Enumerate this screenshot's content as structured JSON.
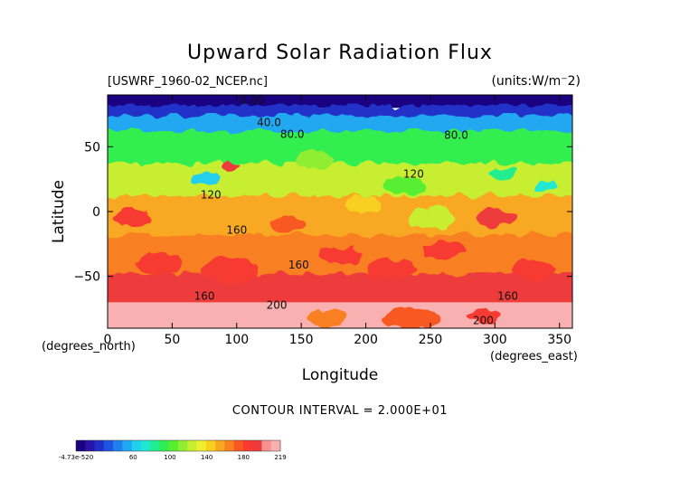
{
  "chart_data": {
    "type": "heatmap",
    "title": "Upward Solar Radiation Flux",
    "file_label": "[USWRF_1960-02_NCEP.nc]",
    "units_label": "(units:W/m^2)",
    "xlabel": "Longitude",
    "ylabel": "Latitude",
    "x_unit_label": "(degrees_east)",
    "y_unit_label": "(degrees_north)",
    "xlim": [
      0,
      360
    ],
    "ylim": [
      -90,
      90
    ],
    "x_ticks": [
      0,
      50,
      100,
      150,
      200,
      250,
      300,
      350
    ],
    "y_ticks": [
      -50,
      0,
      50
    ],
    "contour_interval_text": "CONTOUR INTERVAL = 2.000E+01",
    "contour_interval": 20,
    "contour_labels": [
      {
        "text": "0.00",
        "lon": 112,
        "lat": 83
      },
      {
        "text": "40.0",
        "lon": 125,
        "lat": 66
      },
      {
        "text": "80.0",
        "lon": 143,
        "lat": 57
      },
      {
        "text": "80.0",
        "lon": 270,
        "lat": 56
      },
      {
        "text": "120",
        "lon": 237,
        "lat": 26
      },
      {
        "text": "120",
        "lon": 80,
        "lat": 10
      },
      {
        "text": "160",
        "lon": 100,
        "lat": -17
      },
      {
        "text": "160",
        "lon": 148,
        "lat": -44
      },
      {
        "text": "160",
        "lon": 75,
        "lat": -68
      },
      {
        "text": "200",
        "lon": 131,
        "lat": -75
      },
      {
        "text": "160",
        "lon": 310,
        "lat": -68
      },
      {
        "text": "200",
        "lon": 291,
        "lat": -87
      }
    ],
    "colorbar": {
      "labels": [
        "-4.73e-520",
        "60",
        "100",
        "140",
        "180",
        "219"
      ],
      "min": 0,
      "max": 219,
      "colors": [
        "#1a0080",
        "#2a12a8",
        "#2030c8",
        "#1e55e0",
        "#2080ee",
        "#20a8f0",
        "#20d0ee",
        "#20e8d0",
        "#20ee90",
        "#30ee50",
        "#58ee30",
        "#90ee30",
        "#c8ee30",
        "#f0ee30",
        "#f8d020",
        "#f8a820",
        "#f88020",
        "#f85820",
        "#f83a30",
        "#ee3a3a",
        "#f89090",
        "#f8b0b0"
      ]
    },
    "latitude_bands": [
      {
        "lat_range": [
          80,
          90
        ],
        "value": 5
      },
      {
        "lat_range": [
          72,
          80
        ],
        "value": 25
      },
      {
        "lat_range": [
          60,
          72
        ],
        "value": 55
      },
      {
        "lat_range": [
          35,
          60
        ],
        "value": 95
      },
      {
        "lat_range": [
          10,
          35
        ],
        "value": 120
      },
      {
        "lat_range": [
          -20,
          10
        ],
        "value": 150
      },
      {
        "lat_range": [
          -50,
          -20
        ],
        "value": 160
      },
      {
        "lat_range": [
          -70,
          -50
        ],
        "value": 190
      },
      {
        "lat_range": [
          -90,
          -70
        ],
        "value": 215
      }
    ],
    "grid": false
  }
}
